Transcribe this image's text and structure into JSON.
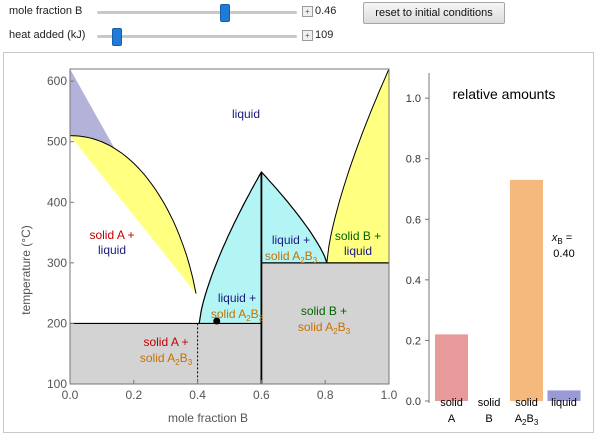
{
  "controls": {
    "mole_fraction": {
      "label": "mole fraction B",
      "value": "0.46",
      "fraction": 0.64
    },
    "heat_added": {
      "label": "heat added (kJ)",
      "value": "109",
      "fraction": 0.1
    },
    "reset_label": "reset to initial conditions",
    "plus_glyph": "+"
  },
  "phase_diagram": {
    "xlabel": "mole fraction B",
    "ylabel": "temperature (°C)",
    "xlim": [
      0,
      1
    ],
    "ylim": [
      100,
      620
    ],
    "x_ticks": [
      "0.0",
      "0.2",
      "0.4",
      "0.6",
      "0.8",
      "1.0"
    ],
    "y_ticks": [
      "100",
      "200",
      "300",
      "400",
      "500",
      "600"
    ],
    "state_point": {
      "x": 0.46,
      "t": 204
    },
    "colors": {
      "liquid": "#b3b3d9",
      "solid_liquid": "#ffff80",
      "compound_liquid": "#b3f5f5",
      "solid": "#d3d3d3"
    },
    "regions": {
      "liquid": "liquid",
      "solid_a_liquid": {
        "line1": "solid A +",
        "line2": "liquid"
      },
      "liquid_a2b3_left": {
        "line1": "liquid +",
        "line2_prefix": "solid A",
        "sub1": "2",
        "mid": "B",
        "sub2": "3"
      },
      "liquid_a2b3_right": {
        "line1": "liquid +",
        "line2_prefix": "solid A",
        "sub1": "2",
        "mid": "B",
        "sub2": "3"
      },
      "solid_b_liquid": {
        "line1": "solid B +",
        "line2": "liquid"
      },
      "solid_a_a2b3": {
        "line1": "solid A +",
        "line2_prefix": "solid A",
        "sub1": "2",
        "mid": "B",
        "sub2": "3"
      },
      "solid_b_a2b3": {
        "line1": "solid B +",
        "line2_prefix": "solid A",
        "sub1": "2",
        "mid": "B",
        "sub2": "3"
      }
    }
  },
  "chart_data": {
    "type": "bar",
    "title": "relative amounts",
    "ylim": [
      0,
      1.05
    ],
    "y_ticks": [
      "0.0",
      "0.2",
      "0.4",
      "0.6",
      "0.8",
      "1.0"
    ],
    "categories": [
      {
        "line1": "solid",
        "line2": "A",
        "sub": ""
      },
      {
        "line1": "solid",
        "line2": "B",
        "sub": ""
      },
      {
        "line1": "solid",
        "line2": "A",
        "sub": "2",
        "mid": "B",
        "sub2": "3"
      },
      {
        "line1": "liquid",
        "line2": "",
        "sub": ""
      }
    ],
    "values": [
      0.22,
      0.0,
      0.73,
      0.035
    ],
    "colors": [
      "#e89a9a",
      "#d3d3d3",
      "#f5b97d",
      "#9a9ad6"
    ],
    "annotation": {
      "label_prefix": "x",
      "label_sub": "B",
      "label_suffix": " =",
      "value": "0.40"
    }
  }
}
